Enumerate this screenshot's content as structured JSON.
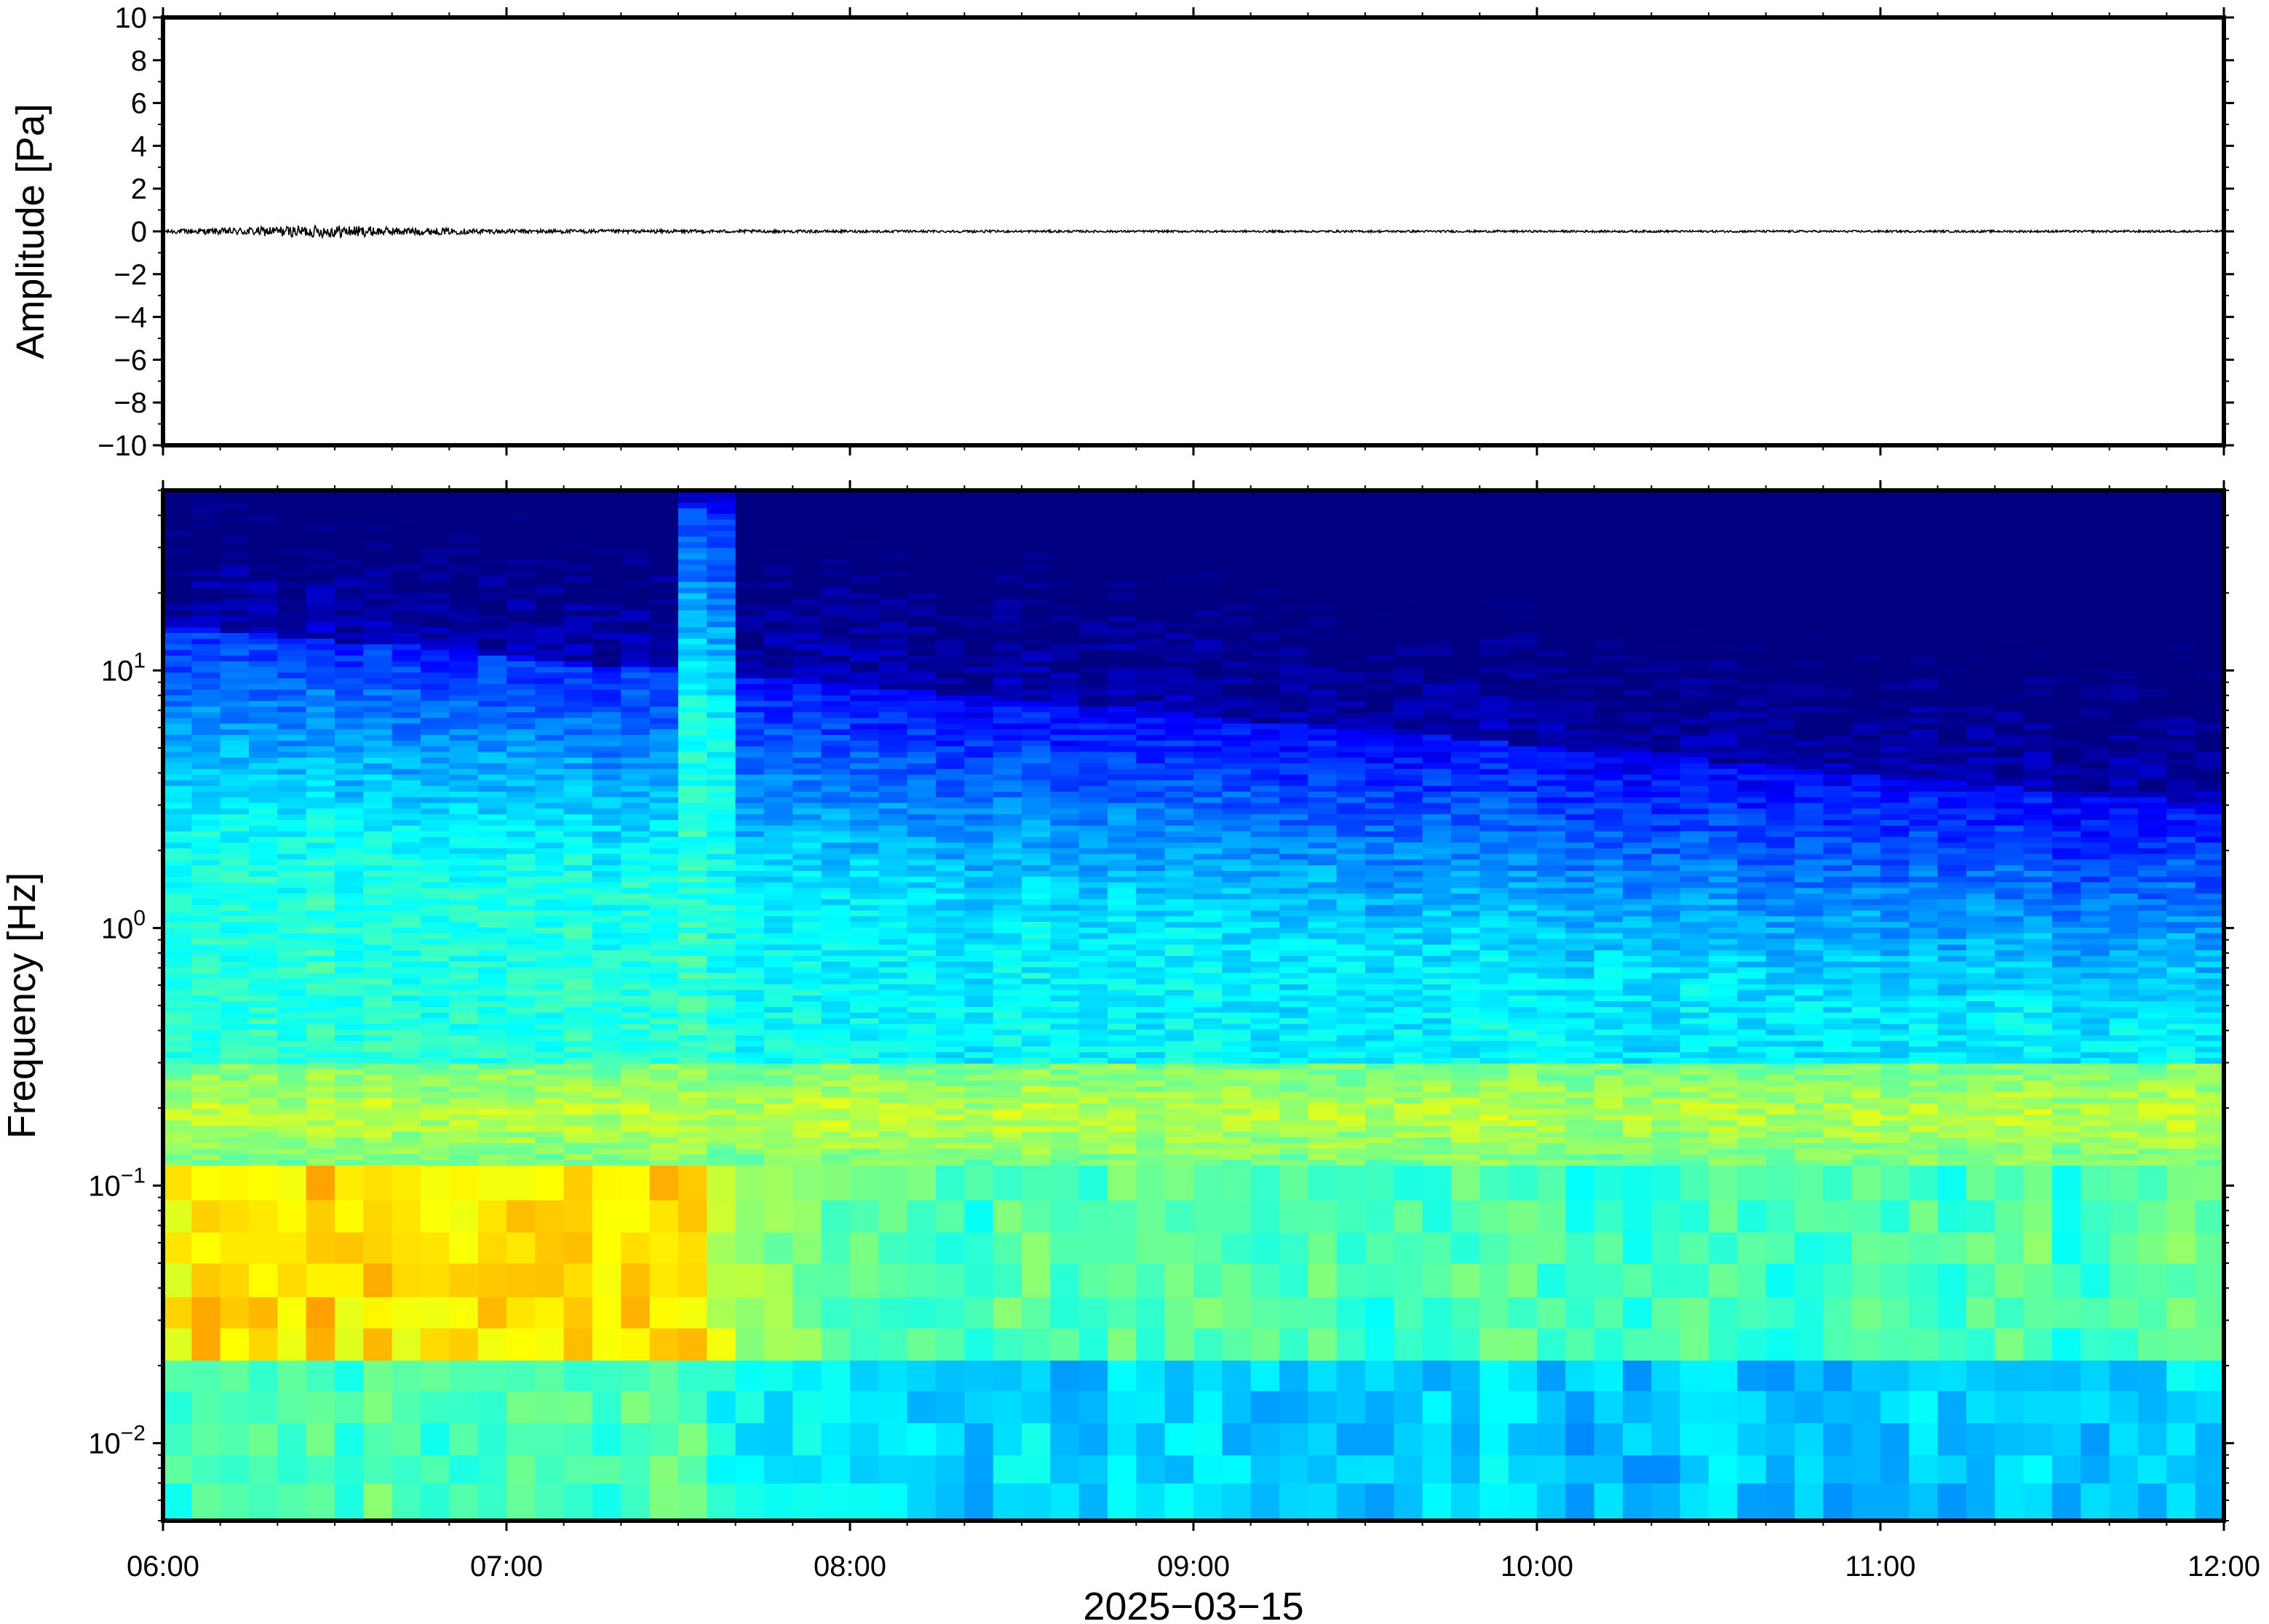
{
  "chart_data": [
    {
      "type": "line",
      "ylabel": "Amplitude [Pa]",
      "xlabel": "2025−03−15",
      "ylim": [
        -10,
        10
      ],
      "xlim": [
        "06:00",
        "12:00"
      ],
      "yticks": [
        10,
        8,
        6,
        4,
        2,
        0,
        -2,
        -4,
        -6,
        -8,
        -10
      ],
      "ytick_labels": [
        "10",
        "8",
        "6",
        "4",
        "2",
        "0",
        "−2",
        "−4",
        "−6",
        "−8",
        "−10"
      ],
      "series": [
        {
          "color": "#000000",
          "x": [
            "06:00",
            "06:10",
            "06:20",
            "06:30",
            "06:40",
            "06:50",
            "07:00",
            "07:30",
            "08:00",
            "09:00",
            "10:00",
            "11:00",
            "12:00"
          ],
          "envelope": [
            0.1,
            0.15,
            0.25,
            0.3,
            0.2,
            0.15,
            0.1,
            0.08,
            0.06,
            0.05,
            0.05,
            0.05,
            0.05
          ]
        }
      ],
      "grid": false
    },
    {
      "type": "heatmap",
      "ylabel": "Frequency [Hz]",
      "xlabel": "2025−03−15",
      "yscale": "log",
      "ylim": [
        0.005,
        50
      ],
      "xlim": [
        "06:00",
        "12:00"
      ],
      "xticks": [
        "06:00",
        "07:00",
        "08:00",
        "09:00",
        "10:00",
        "11:00",
        "12:00"
      ],
      "yticks": [
        0.01,
        0.1,
        1,
        10
      ],
      "ytick_labels": [
        {
          "base": "10",
          "exp": "−2"
        },
        {
          "base": "10",
          "exp": "−1"
        },
        {
          "base": "10",
          "exp": "0"
        },
        {
          "base": "10",
          "exp": "1"
        }
      ],
      "colormap": "jet",
      "colors": {
        "low": "#0b0878",
        "mid": "#52c8f0",
        "high": "#f5a040"
      },
      "features": {
        "microseism_band_hz": [
          0.12,
          0.3
        ],
        "high_energy_period": [
          "06:00",
          "07:30"
        ],
        "upper_cutoff_hz_start": 15,
        "upper_cutoff_hz_end": 3,
        "transient_time": "07:35"
      },
      "grid": false
    }
  ]
}
